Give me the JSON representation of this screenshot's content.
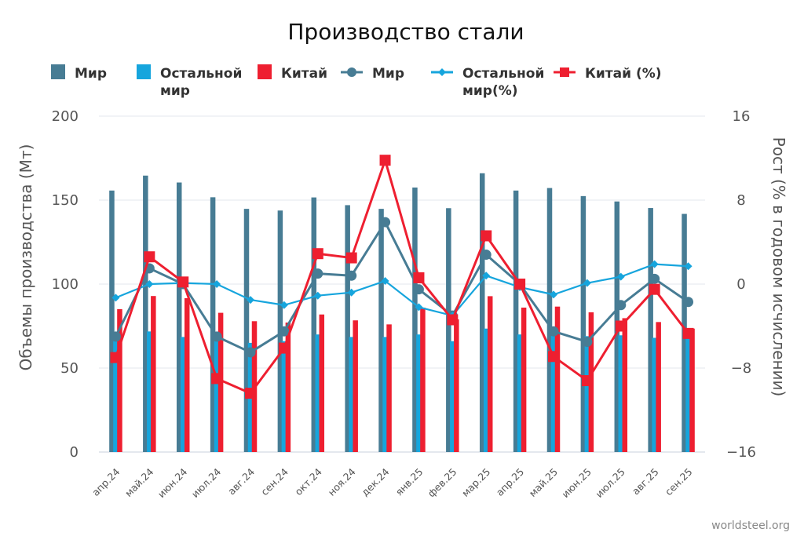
{
  "chart_data": {
    "type": "bar",
    "title": "Производство стали",
    "ylabel": "Объемы производства (Мт)",
    "y2label": "Рост (% в годовом исчислении)",
    "ylim": [
      0,
      200
    ],
    "y2lim": [
      -16,
      16
    ],
    "yticks": [
      "0",
      "50",
      "100",
      "150",
      "200"
    ],
    "y2ticks": [
      "−16",
      "−8",
      "0",
      "8",
      "16"
    ],
    "categories": [
      "апр.24",
      "май.24",
      "июн.24",
      "июл.24",
      "авг.24",
      "сен.24",
      "окт.24",
      "ноя.24",
      "дек.24",
      "янв.25",
      "фев.25",
      "мар.25",
      "апр.25",
      "май.25",
      "июн.25",
      "июл.25",
      "авг.25",
      "сен.25"
    ],
    "series": [
      {
        "name": "Мир",
        "kind": "bar",
        "axis": "left",
        "color": "#477c94",
        "values": [
          155.7,
          164.6,
          160.5,
          151.7,
          144.8,
          143.8,
          151.6,
          147.0,
          144.8,
          157.5,
          145.2,
          166.0,
          155.7,
          157.2,
          152.4,
          149.2,
          145.3,
          141.8
        ]
      },
      {
        "name": "Остальной мир",
        "kind": "bar",
        "axis": "left",
        "color": "#16a5dd",
        "values": [
          70.6,
          71.8,
          68.5,
          69.0,
          65.0,
          66.0,
          70.0,
          68.5,
          68.5,
          70.0,
          66.0,
          73.5,
          70.0,
          70.0,
          69.0,
          69.5,
          68.0,
          68.0
        ]
      },
      {
        "name": "Китай",
        "kind": "bar",
        "axis": "left",
        "color": "#ee1f30",
        "values": [
          85.1,
          92.9,
          91.6,
          82.9,
          77.9,
          77.1,
          81.9,
          78.4,
          76.0,
          86.0,
          79.0,
          92.8,
          86.0,
          86.6,
          83.2,
          79.7,
          77.4,
          73.5
        ]
      },
      {
        "name": "Мир",
        "kind": "line",
        "axis": "right",
        "color": "#477c94",
        "marker": "circle",
        "values": [
          -5.0,
          1.5,
          0.0,
          -5.0,
          -6.5,
          -4.5,
          1.0,
          0.8,
          5.9,
          -0.5,
          -3.0,
          2.8,
          0.0,
          -4.5,
          -5.5,
          -2.0,
          0.5,
          -1.7
        ]
      },
      {
        "name": "Остальной мир(%)",
        "kind": "line",
        "axis": "right",
        "color": "#16a5dd",
        "marker": "diamond",
        "values": [
          -1.3,
          0.0,
          0.1,
          0.0,
          -1.5,
          -2.0,
          -1.1,
          -0.8,
          0.3,
          -2.2,
          -3.0,
          0.8,
          -0.3,
          -1.0,
          0.1,
          0.7,
          1.9,
          1.7
        ]
      },
      {
        "name": "Китай (%)",
        "kind": "line",
        "axis": "right",
        "color": "#ee1f30",
        "marker": "square",
        "values": [
          -7.0,
          2.6,
          0.2,
          -9.0,
          -10.4,
          -6.1,
          2.9,
          2.5,
          11.8,
          0.6,
          -3.4,
          4.6,
          0.0,
          -6.9,
          -9.2,
          -4.0,
          -0.5,
          -4.7
        ]
      }
    ],
    "legend": {
      "position": "top",
      "items": [
        {
          "label1": "Мир",
          "label2": "",
          "symbol": "bar",
          "color": "#477c94"
        },
        {
          "label1": "Остальной",
          "label2": "мир",
          "symbol": "bar",
          "color": "#16a5dd"
        },
        {
          "label1": "Китай",
          "label2": "",
          "symbol": "bar",
          "color": "#ee1f30"
        },
        {
          "label1": "Мир",
          "label2": "",
          "symbol": "line-circle",
          "color": "#477c94"
        },
        {
          "label1": "Остальной",
          "label2": "мир(%)",
          "symbol": "line-diamond",
          "color": "#16a5dd"
        },
        {
          "label1": "Китай (%)",
          "label2": "",
          "symbol": "line-square",
          "color": "#ee1f30"
        }
      ]
    },
    "source": "worldsteel.org"
  }
}
